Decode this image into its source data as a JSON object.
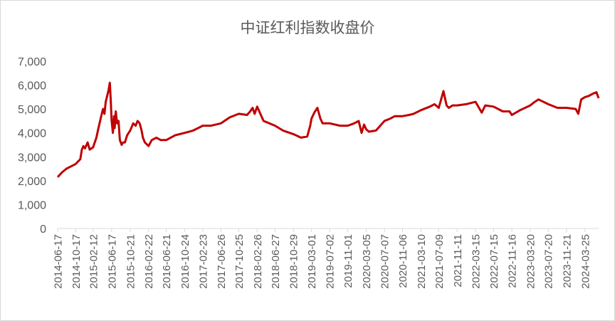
{
  "chart_data": {
    "type": "line",
    "title": "中证红利指数收盘价",
    "xlabel": "",
    "ylabel": "",
    "ylim": [
      0,
      7000
    ],
    "yticks": [
      "0",
      "1,000",
      "2,000",
      "3,000",
      "4,000",
      "5,000",
      "6,000",
      "7,000"
    ],
    "grid": false,
    "legend": "none",
    "xticks": [
      "2014-06-17",
      "2014-10-17",
      "2015-02-12",
      "2015-06-17",
      "2015-10-21",
      "2016-02-22",
      "2016-06-21",
      "2016-10-24",
      "2017-02-23",
      "2017-06-26",
      "2017-10-25",
      "2018-02-26",
      "2018-06-27",
      "2018-10-29",
      "2019-03-01",
      "2019-07-02",
      "2019-11-01",
      "2020-03-05",
      "2020-07-07",
      "2020-11-06",
      "2021-03-10",
      "2021-07-09",
      "2021-11-11",
      "2022-03-15",
      "2022-07-15",
      "2022-11-16",
      "2023-03-20",
      "2023-07-20",
      "2023-11-21",
      "2024-03-25"
    ],
    "line_color": "#c00000",
    "series": [
      {
        "x": [
          "2014-06-17",
          "2014-07-17",
          "2014-08-15",
          "2014-09-16",
          "2014-10-17",
          "2014-11-17",
          "2014-11-28",
          "2014-12-08",
          "2014-12-19",
          "2015-01-06",
          "2015-01-20",
          "2015-02-12",
          "2015-03-06",
          "2015-03-20",
          "2015-04-08",
          "2015-04-20",
          "2015-04-30",
          "2015-05-08",
          "2015-05-20",
          "2015-05-28",
          "2015-06-05",
          "2015-06-12",
          "2015-06-17",
          "2015-06-26",
          "2015-07-03",
          "2015-07-08",
          "2015-07-15",
          "2015-07-24",
          "2015-08-03",
          "2015-08-12",
          "2015-08-24",
          "2015-09-02",
          "2015-09-15",
          "2015-09-30",
          "2015-10-21",
          "2015-11-10",
          "2015-11-27",
          "2015-12-10",
          "2015-12-24",
          "2016-01-06",
          "2016-01-15",
          "2016-01-28",
          "2016-02-22",
          "2016-03-15",
          "2016-04-15",
          "2016-05-15",
          "2016-06-21",
          "2016-08-20",
          "2016-10-24",
          "2016-12-20",
          "2017-02-23",
          "2017-04-20",
          "2017-06-26",
          "2017-08-25",
          "2017-10-25",
          "2017-12-20",
          "2018-01-10",
          "2018-01-26",
          "2018-02-09",
          "2018-02-26",
          "2018-04-10",
          "2018-06-27",
          "2018-08-20",
          "2018-10-29",
          "2018-12-20",
          "2019-01-31",
          "2019-02-20",
          "2019-03-01",
          "2019-03-20",
          "2019-04-10",
          "2019-04-30",
          "2019-05-15",
          "2019-07-02",
          "2019-09-10",
          "2019-11-01",
          "2019-12-15",
          "2020-01-14",
          "2020-02-03",
          "2020-02-20",
          "2020-03-05",
          "2020-03-23",
          "2020-05-10",
          "2020-07-07",
          "2020-08-15",
          "2020-09-15",
          "2020-11-06",
          "2020-12-20",
          "2021-01-20",
          "2021-03-10",
          "2021-05-10",
          "2021-06-10",
          "2021-07-09",
          "2021-08-10",
          "2021-08-31",
          "2021-09-15",
          "2021-10-10",
          "2021-11-11",
          "2022-01-10",
          "2022-03-15",
          "2022-04-26",
          "2022-05-20",
          "2022-07-15",
          "2022-09-15",
          "2022-10-31",
          "2022-11-16",
          "2023-01-10",
          "2023-03-20",
          "2023-04-20",
          "2023-05-15",
          "2023-07-20",
          "2023-09-20",
          "2023-11-21",
          "2024-01-22",
          "2024-02-08",
          "2024-02-28",
          "2024-03-25",
          "2024-04-20",
          "2024-05-20",
          "2024-06-10",
          "2024-06-25"
        ],
        "values": [
          2150,
          2350,
          2500,
          2600,
          2700,
          2900,
          3300,
          3450,
          3350,
          3600,
          3300,
          3400,
          3800,
          4200,
          4700,
          5000,
          4800,
          5300,
          5600,
          5800,
          6100,
          5300,
          4500,
          4000,
          4700,
          4200,
          4900,
          4400,
          4500,
          3700,
          3500,
          3600,
          3600,
          3900,
          4100,
          4400,
          4300,
          4500,
          4400,
          4100,
          3800,
          3600,
          3450,
          3700,
          3800,
          3700,
          3700,
          3900,
          4000,
          4100,
          4300,
          4300,
          4400,
          4650,
          4800,
          4750,
          4900,
          5050,
          4800,
          5100,
          4500,
          4300,
          4100,
          3950,
          3800,
          3850,
          4300,
          4600,
          4850,
          5050,
          4600,
          4400,
          4400,
          4300,
          4300,
          4400,
          4500,
          4000,
          4350,
          4150,
          4050,
          4100,
          4500,
          4600,
          4700,
          4700,
          4750,
          4800,
          4950,
          5100,
          5200,
          5050,
          5750,
          5150,
          5050,
          5150,
          5150,
          5200,
          5300,
          4850,
          5150,
          5100,
          4900,
          4900,
          4750,
          4950,
          5150,
          5300,
          5400,
          5200,
          5050,
          5050,
          5000,
          4800,
          5400,
          5500,
          5550,
          5650,
          5700,
          5450
        ]
      }
    ]
  }
}
